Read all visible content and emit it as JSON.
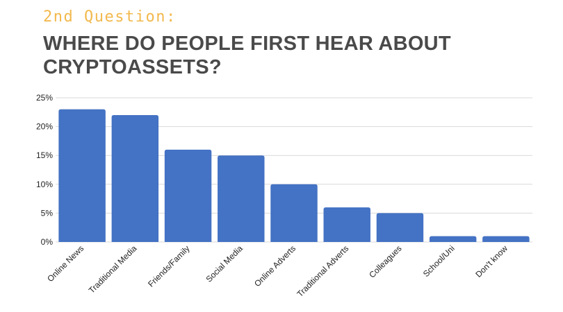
{
  "subtitle": "2nd Question:",
  "title": "WHERE DO PEOPLE FIRST HEAR ABOUT CRYPTOASSETS?",
  "colors": {
    "bar": "#4472c4",
    "subtitle": "#f2b94d",
    "title": "#4a4a4a",
    "grid": "#d9d9d9",
    "axis_text": "#222222"
  },
  "chart_data": {
    "type": "bar",
    "categories": [
      "Online News",
      "Traditional Media",
      "Friends/Family",
      "Social Media",
      "Online Adverts",
      "Traditional Adverts",
      "Colleagues",
      "School/Uni",
      "Don't know"
    ],
    "values": [
      23,
      22,
      16,
      15,
      10,
      6,
      5,
      1,
      1
    ],
    "unit": "%",
    "ylim": [
      0,
      25
    ],
    "yticks": [
      "0%",
      "5%",
      "10%",
      "15%",
      "20%",
      "25%"
    ],
    "ytick_values": [
      0,
      5,
      10,
      15,
      20,
      25
    ],
    "grid": true,
    "legend": "none",
    "xlabel": "",
    "ylabel": ""
  }
}
